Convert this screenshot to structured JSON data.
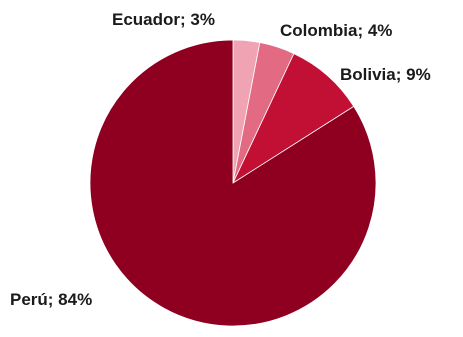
{
  "chart_data": {
    "type": "pie",
    "title": "",
    "categories": [
      "Ecuador",
      "Colombia",
      "Bolivia",
      "Perú"
    ],
    "values": [
      3,
      4,
      9,
      84
    ],
    "labels": [
      "Ecuador; 3%",
      "Colombia; 4%",
      "Bolivia; 9%",
      "Perú; 84%"
    ],
    "colors": [
      "#f0a3b3",
      "#e26a82",
      "#c20f34",
      "#8f0020"
    ],
    "start_angle_deg": 0,
    "direction": "clockwise",
    "legend": "none"
  }
}
